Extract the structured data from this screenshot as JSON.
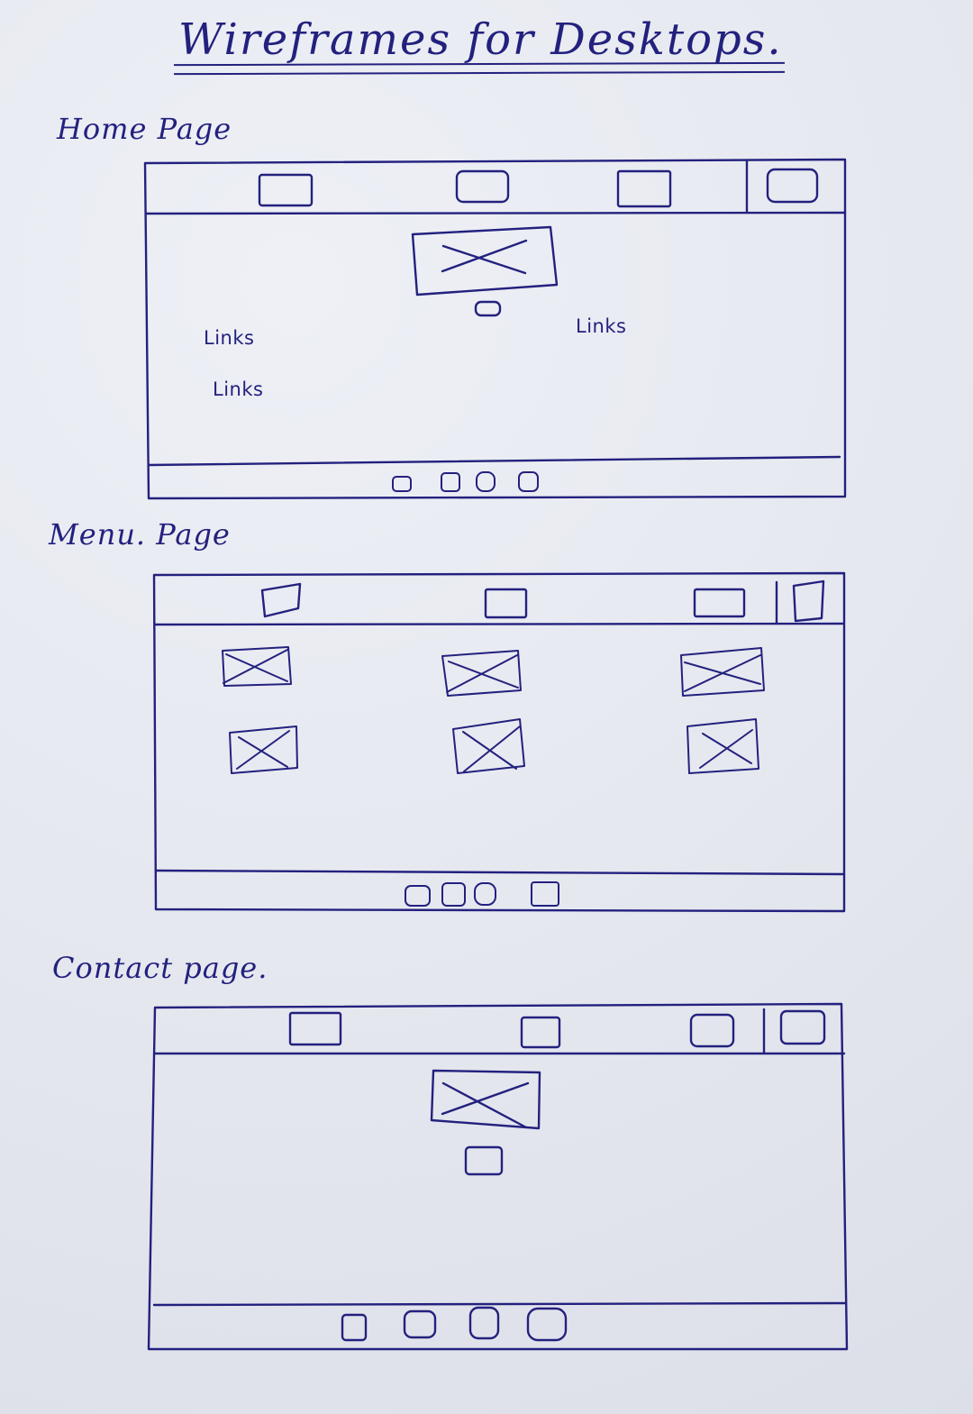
{
  "title": "Wireframes for Desktops.",
  "sections": {
    "home": {
      "label": "Home Page",
      "links": [
        "Links",
        "Links",
        "Links"
      ]
    },
    "menu": {
      "label": "Menu. Page"
    },
    "contact": {
      "label": "Contact page."
    }
  },
  "colors": {
    "ink": "#23217e",
    "paper": "#e8e9f0"
  }
}
